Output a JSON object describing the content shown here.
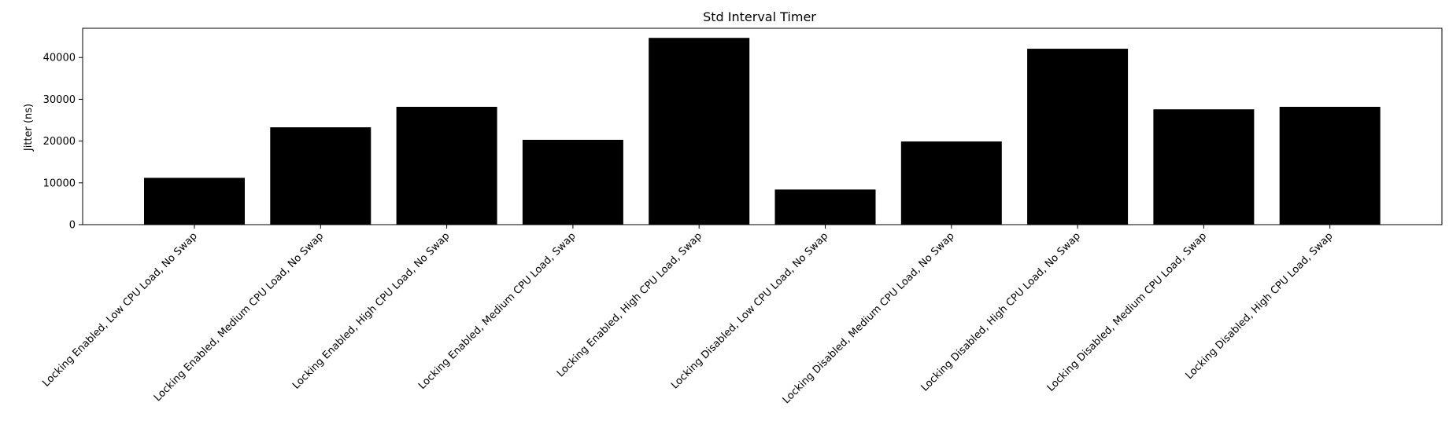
{
  "chart_data": {
    "type": "bar",
    "title": "Std Interval Timer",
    "xlabel": "",
    "ylabel": "Jitter (ns)",
    "ylim": [
      0,
      47000
    ],
    "yticks": [
      0,
      10000,
      20000,
      30000,
      40000
    ],
    "categories": [
      "Locking Enabled, Low CPU Load, No Swap",
      "Locking Enabled, Medium CPU Load, No Swap",
      "Locking Enabled, High CPU Load, No Swap",
      "Locking Enabled, Medium CPU Load, Swap",
      "Locking Enabled, High CPU Load, Swap",
      "Locking Disabled, Low CPU Load, No Swap",
      "Locking Disabled, Medium CPU Load, No Swap",
      "Locking Disabled, High CPU Load, No Swap",
      "Locking Disabled, Medium CPU Load, Swap",
      "Locking Disabled, High CPU Load, Swap"
    ],
    "values": [
      11200,
      23300,
      28200,
      20300,
      44700,
      8400,
      19900,
      42100,
      27600,
      28200
    ],
    "bar_color": "#000000",
    "grid": false,
    "legend": "none"
  }
}
